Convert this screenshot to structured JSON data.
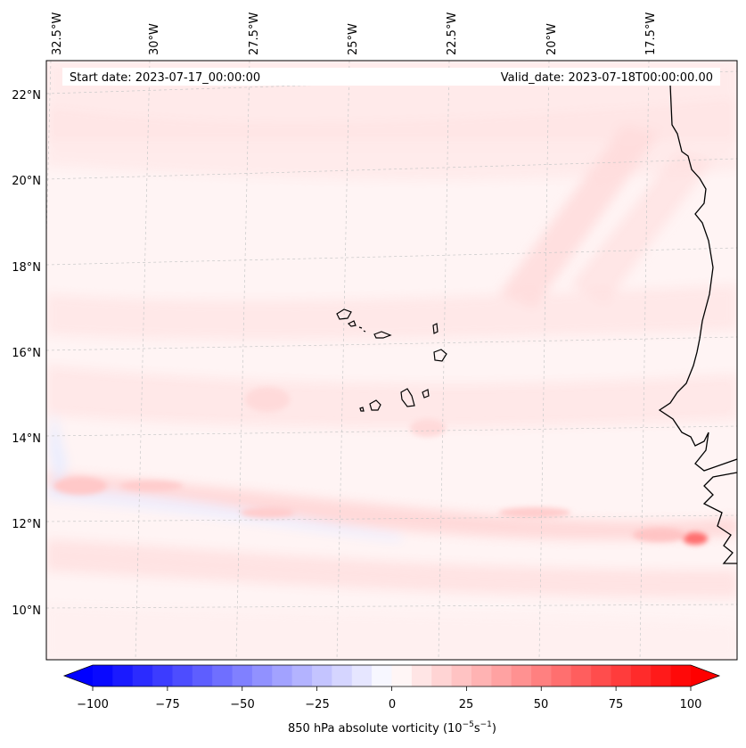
{
  "map": {
    "start_label": "Start date: 2023-07-17_00:00:00",
    "valid_label": "Valid_date: 2023-07-18T00:00:00.00",
    "lon_labels": [
      "32.5°W",
      "30°W",
      "27.5°W",
      "25°W",
      "22.5°W",
      "20°W",
      "17.5°W"
    ],
    "lat_labels": [
      "22°N",
      "20°N",
      "18°N",
      "16°N",
      "14°N",
      "12°N",
      "10°N"
    ],
    "field": "850 hPa absolute vorticity",
    "colors": {
      "low": "#0000ff",
      "mid": "#ffffff",
      "high": "#ff0000",
      "coast": "#000000",
      "grid": "#bbbbbb"
    }
  },
  "colorbar": {
    "tick_labels": [
      "−100",
      "−75",
      "−50",
      "−25",
      "0",
      "25",
      "50",
      "75",
      "100"
    ],
    "label_main": "850 hPa absolute vorticity (10",
    "label_exp1": "−5",
    "label_mid": "s",
    "label_exp2": "−1",
    "label_end": ")",
    "vmin": -100,
    "vmax": 100,
    "levels": 30
  }
}
